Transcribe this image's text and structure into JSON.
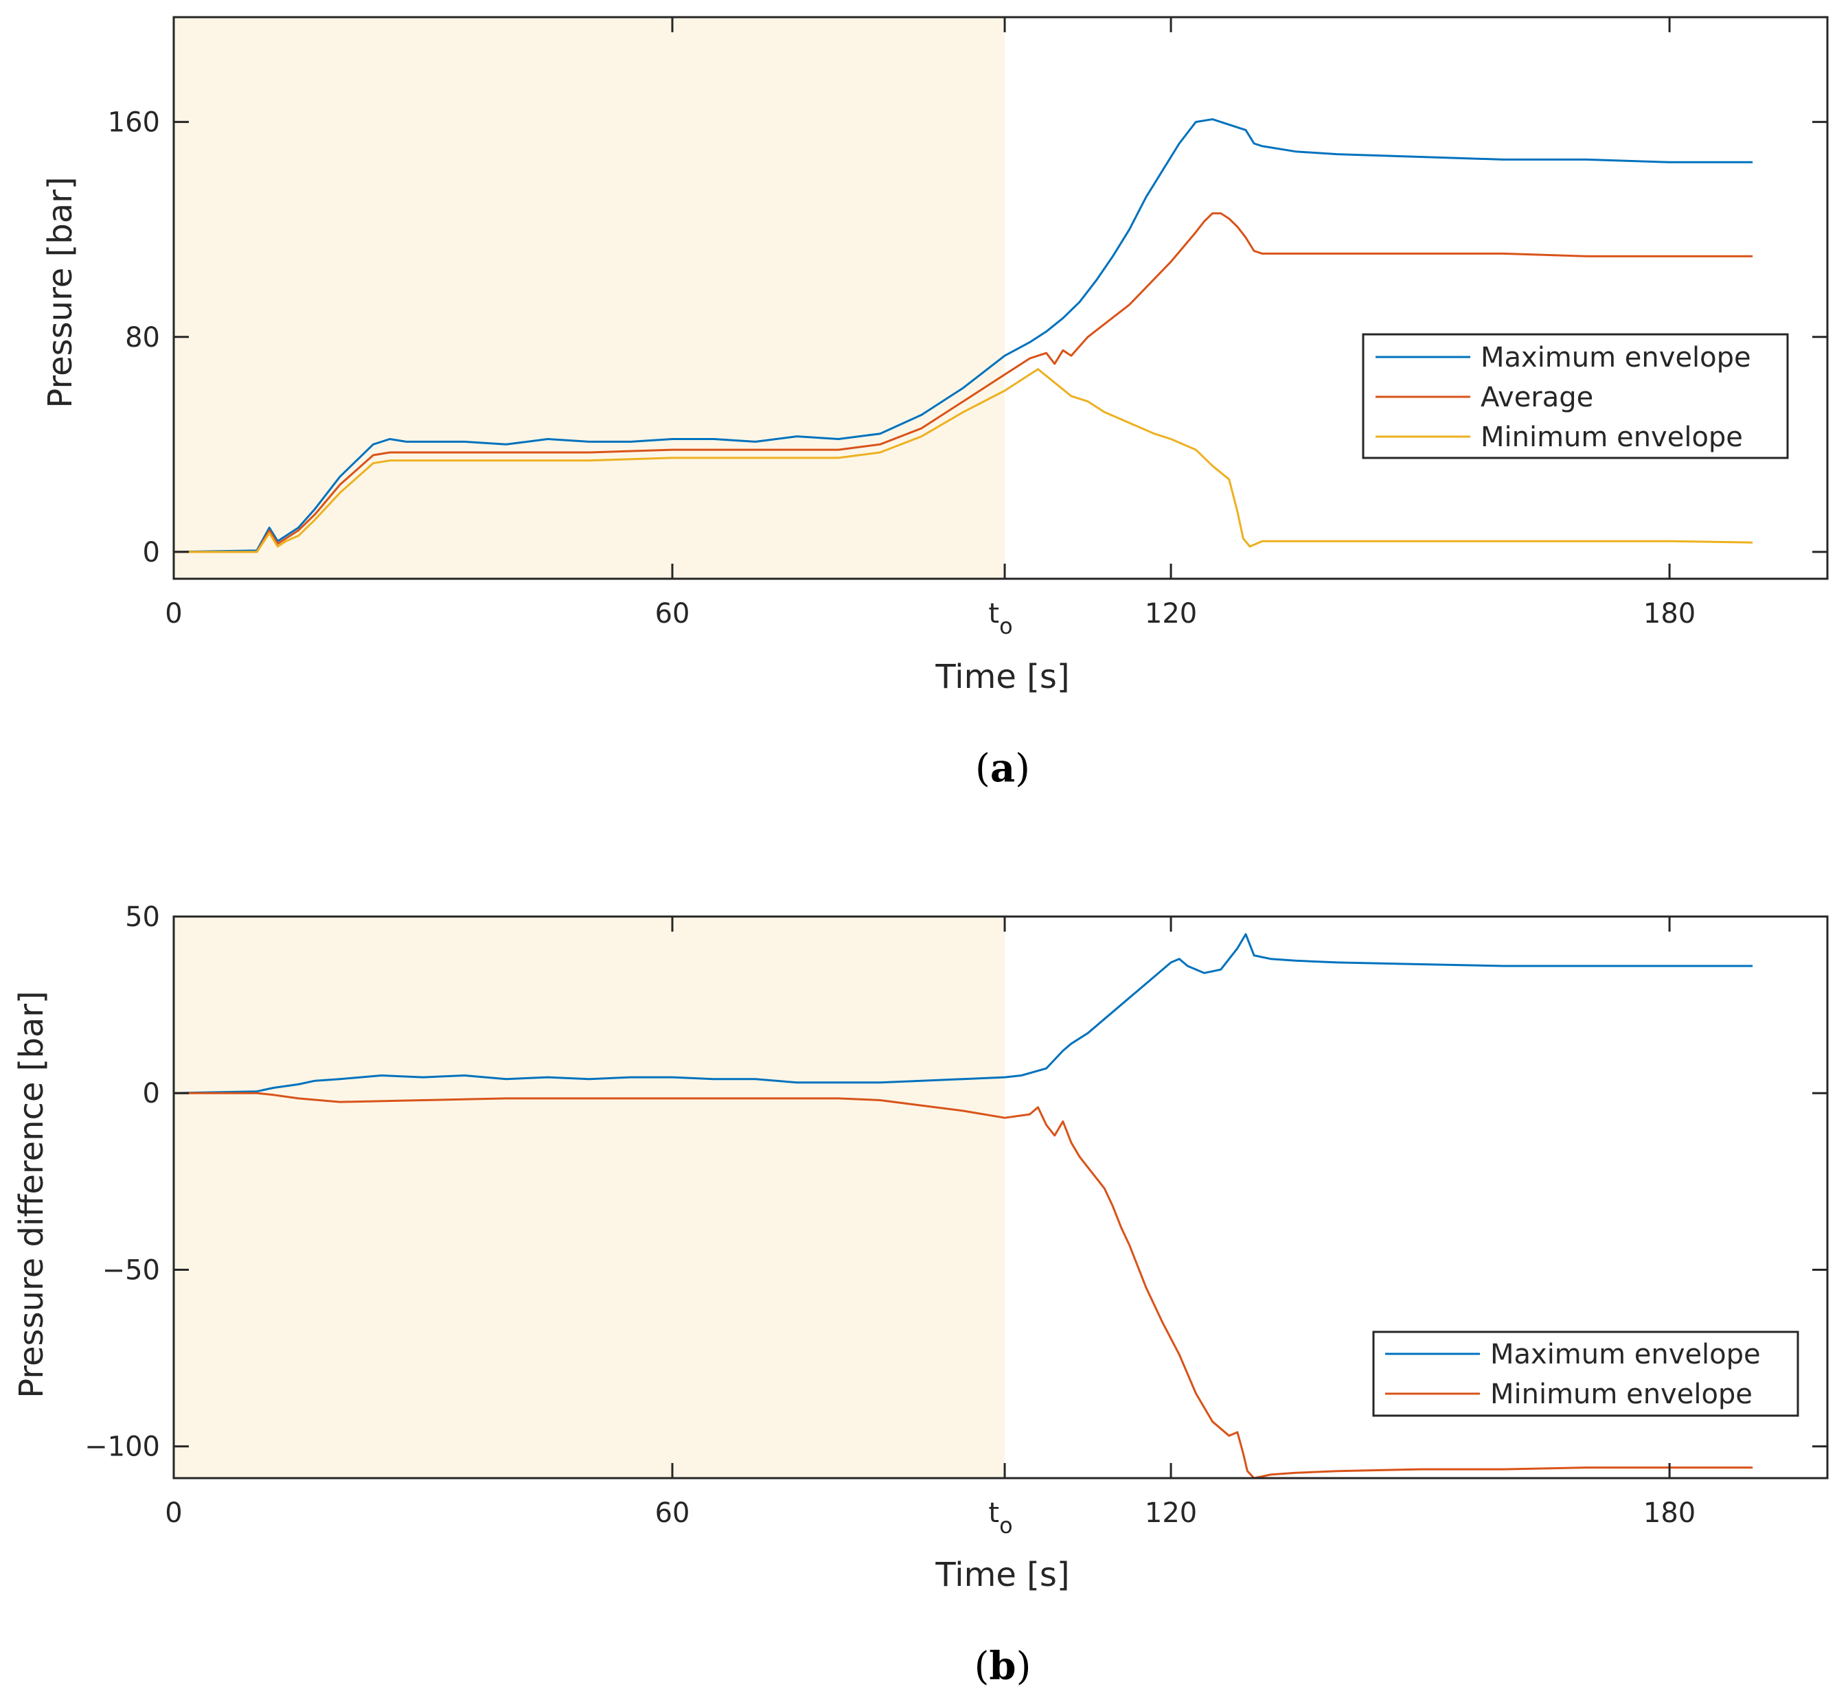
{
  "colors": {
    "max_envelope": "#0072BD",
    "average": "#D95319",
    "min_envelope": "#EDB120",
    "shade": "#FDF6E7",
    "axis": "#262626"
  },
  "chart_data": [
    {
      "id": "a",
      "panel_label": "a",
      "type": "line",
      "xlabel": "Time [s]",
      "ylabel": "Pressure [bar]",
      "xlim": [
        0,
        199
      ],
      "ylim": [
        -10,
        199
      ],
      "xticks": [
        0,
        60,
        100,
        120,
        180
      ],
      "xtick_labels": [
        "0",
        "60",
        "t",
        "120",
        "180"
      ],
      "xtick_subscripts": [
        "",
        "",
        "o",
        "",
        ""
      ],
      "yticks": [
        0,
        80,
        160
      ],
      "ytick_labels": [
        "0",
        "80",
        "160"
      ],
      "shaded_region": [
        0,
        100
      ],
      "grid": false,
      "legend_position": "right",
      "series": [
        {
          "name": "Maximum envelope",
          "color": "#0072BD",
          "x": [
            0,
            10,
            11.5,
            12.5,
            13.5,
            15,
            17,
            20,
            24,
            26,
            28,
            30,
            35,
            40,
            45,
            50,
            55,
            60,
            65,
            70,
            75,
            80,
            85,
            90,
            95,
            100,
            103,
            105,
            107,
            109,
            111,
            113,
            115,
            117,
            119,
            121,
            123,
            125,
            127,
            129,
            130,
            131,
            135,
            140,
            150,
            160,
            170,
            180,
            190
          ],
          "y": [
            0,
            0.5,
            9,
            4,
            6,
            9,
            16,
            28,
            40,
            42,
            41,
            41,
            41,
            40,
            42,
            41,
            41,
            42,
            42,
            41,
            43,
            42,
            44,
            51,
            61,
            73,
            78,
            82,
            87,
            93,
            101,
            110,
            120,
            132,
            142,
            152,
            160,
            161,
            159,
            157,
            152,
            151,
            149,
            148,
            147,
            146,
            146,
            145,
            145
          ]
        },
        {
          "name": "Average",
          "color": "#D95319",
          "x": [
            0,
            10,
            11.5,
            12.5,
            13.5,
            15,
            17,
            20,
            24,
            26,
            30,
            40,
            50,
            60,
            70,
            80,
            85,
            90,
            95,
            100,
            103,
            105,
            106,
            107,
            108,
            110,
            115,
            120,
            123,
            124,
            125,
            126,
            127,
            128,
            129,
            130,
            131,
            135,
            140,
            150,
            160,
            170,
            180,
            190
          ],
          "y": [
            0,
            0,
            8,
            3,
            5,
            8,
            14,
            25,
            36,
            37,
            37,
            37,
            37,
            38,
            38,
            38,
            40,
            46,
            56,
            66,
            72,
            74,
            70,
            75,
            73,
            80,
            92,
            108,
            119,
            123,
            126,
            126,
            124,
            121,
            117,
            112,
            111,
            111,
            111,
            111,
            111,
            110,
            110,
            110
          ]
        },
        {
          "name": "Minimum envelope",
          "color": "#EDB120",
          "x": [
            0,
            10,
            11.5,
            12.5,
            13.5,
            15,
            17,
            20,
            24,
            26,
            30,
            40,
            50,
            60,
            70,
            80,
            85,
            90,
            95,
            100,
            103,
            104,
            106,
            108,
            110,
            112,
            115,
            118,
            120,
            123,
            125,
            127,
            128,
            128.7,
            129.5,
            131,
            135,
            140,
            150,
            160,
            170,
            180,
            190
          ],
          "y": [
            0,
            0,
            7,
            2,
            4,
            6,
            12,
            22,
            33,
            34,
            34,
            34,
            34,
            35,
            35,
            35,
            37,
            43,
            52,
            60,
            66,
            68,
            63,
            58,
            56,
            52,
            48,
            44,
            42,
            38,
            32,
            27,
            15,
            5,
            2,
            4,
            4,
            4,
            4,
            4,
            4,
            4,
            3.5
          ]
        }
      ]
    },
    {
      "id": "b",
      "panel_label": "b",
      "type": "line",
      "xlabel": "Time [s]",
      "ylabel": "Pressure difference [bar]",
      "xlim": [
        0,
        199
      ],
      "ylim": [
        -109,
        50
      ],
      "xticks": [
        0,
        60,
        100,
        120,
        180
      ],
      "xtick_labels": [
        "0",
        "60",
        "t",
        "120",
        "180"
      ],
      "xtick_subscripts": [
        "",
        "",
        "o",
        "",
        ""
      ],
      "yticks": [
        -100,
        -50,
        0,
        50
      ],
      "ytick_labels": [
        "−100",
        "−50",
        "0",
        "50"
      ],
      "shaded_region": [
        0,
        100
      ],
      "grid": false,
      "legend_position": "bottom-right",
      "series": [
        {
          "name": "Maximum envelope",
          "color": "#0072BD",
          "x": [
            0,
            10,
            12,
            15,
            17,
            20,
            25,
            30,
            35,
            40,
            45,
            50,
            55,
            60,
            65,
            70,
            75,
            80,
            85,
            90,
            95,
            100,
            102,
            105,
            107,
            108,
            110,
            112,
            115,
            118,
            120,
            121,
            122,
            124,
            126,
            128,
            129,
            130,
            132,
            135,
            140,
            150,
            160,
            170,
            180,
            190
          ],
          "y": [
            0,
            0.5,
            1.5,
            2.5,
            3.5,
            4,
            5,
            4.5,
            5,
            4,
            4.5,
            4,
            4.5,
            4.5,
            4,
            4,
            3,
            3,
            3,
            3.5,
            4,
            4.5,
            5,
            7,
            12,
            14,
            17,
            21,
            27,
            33,
            37,
            38,
            36,
            34,
            35,
            41,
            45,
            39,
            38,
            37.5,
            37,
            36.5,
            36,
            36,
            36,
            36
          ]
        },
        {
          "name": "Minimum envelope",
          "color": "#D95319",
          "x": [
            0,
            10,
            12,
            15,
            20,
            30,
            40,
            50,
            60,
            70,
            80,
            85,
            90,
            95,
            100,
            103,
            104,
            105,
            106,
            107,
            108,
            109,
            110,
            111,
            112,
            113,
            114,
            115,
            117,
            119,
            121,
            123,
            125,
            127,
            128,
            128.7,
            129.2,
            130,
            132,
            135,
            140,
            150,
            160,
            170,
            180,
            190
          ],
          "y": [
            0,
            0,
            -0.5,
            -1.5,
            -2.5,
            -2,
            -1.5,
            -1.5,
            -1.5,
            -1.5,
            -1.5,
            -2,
            -3.5,
            -5,
            -7,
            -6,
            -4,
            -9,
            -12,
            -8,
            -14,
            -18,
            -21,
            -24,
            -27,
            -32,
            -38,
            -43,
            -55,
            -65,
            -74,
            -85,
            -93,
            -97,
            -96,
            -102,
            -107,
            -109,
            -108,
            -107.5,
            -107,
            -106.5,
            -106.5,
            -106,
            -106,
            -106
          ]
        }
      ]
    }
  ]
}
